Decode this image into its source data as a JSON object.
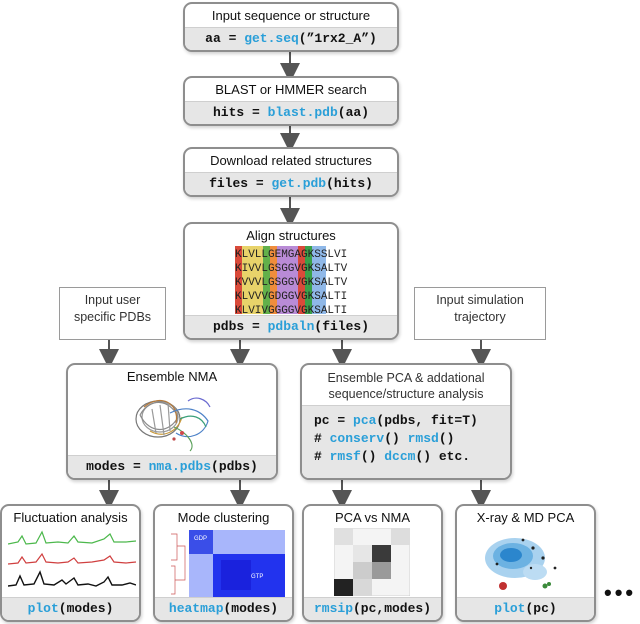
{
  "steps": {
    "input": {
      "title": "Input sequence or structure",
      "code_var": "aa = ",
      "code_fn": "get.seq",
      "code_args": "(”1rx2_A”)"
    },
    "blast": {
      "title": "BLAST or HMMER search",
      "code_var": "hits = ",
      "code_fn": "blast.pdb",
      "code_args": "(aa)"
    },
    "download": {
      "title": "Download related structures",
      "code_var": "files = ",
      "code_fn": "get.pdb",
      "code_args": "(hits)"
    },
    "align": {
      "title": "Align structures",
      "code_var": "pdbs = ",
      "code_fn": "pdbaln",
      "code_args": "(files)",
      "alignment_rows": [
        "KLVLLGEMGAGKSSLVI",
        "KIVVLGSGGVGKSALTV",
        "KVVVLGSGGVGKSALTV",
        "KLVVVGDGGVGKSALTI",
        "KLVIVGGGGVGKSALTI"
      ]
    },
    "nma": {
      "title": "Ensemble NMA",
      "code_var": "modes = ",
      "code_fn": "nma.pdbs",
      "code_args": "(pdbs)"
    },
    "pca": {
      "title_line1": "Ensemble PCA & addational",
      "title_line2": "sequence/structure analysis",
      "line1_pre": "pc = ",
      "line1_fn": "pca",
      "line1_args": "(pdbs, fit=T)",
      "line2_pre": "# ",
      "line2_fn1": "conserv",
      "line2_mid": "() ",
      "line2_fn2": "rmsd",
      "line2_end": "()",
      "line3_pre": "# ",
      "line3_fn1": "rmsf",
      "line3_mid": "() ",
      "line3_fn2": "dccm",
      "line3_end": "() etc."
    }
  },
  "notes": {
    "user_pdbs_line1": "Input user",
    "user_pdbs_line2": "specific PDBs",
    "simulation_line1": "Input simulation",
    "simulation_line2": "trajectory"
  },
  "outputs": {
    "fluct": {
      "title": "Fluctuation analysis",
      "code_fn": "plot",
      "code_args": "(modes)"
    },
    "cluster": {
      "title": "Mode clustering",
      "code_fn": "heatmap",
      "code_args": "(modes)",
      "label_gdp": "GDP",
      "label_gtp": "GTP"
    },
    "pcanma": {
      "title": "PCA vs NMA",
      "code_fn": "rmsip",
      "code_args": "(pc,modes)"
    },
    "xray": {
      "title": "X-ray & MD PCA",
      "code_fn": "plot",
      "code_args": "(pc)"
    }
  },
  "ellipsis": "•••",
  "colors": {
    "function": "#2a9fd8",
    "border": "#8e8e8e",
    "code_bg": "#e6e6e6",
    "arrow": "#555555"
  }
}
